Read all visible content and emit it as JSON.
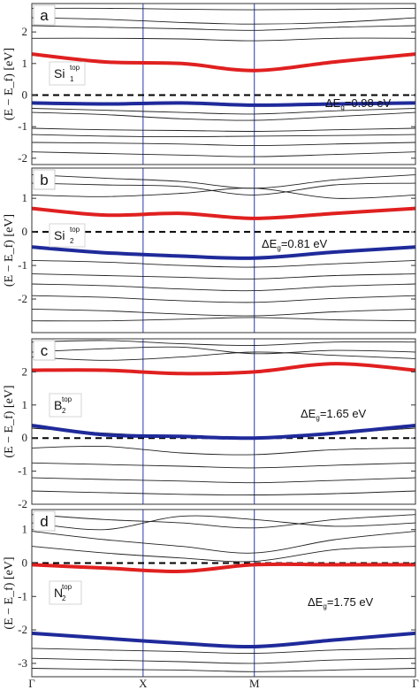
{
  "chart_data": [
    {
      "type": "line",
      "panel": "a",
      "ylabel": "(E − E_f) [eV]",
      "ylim": [
        -2.2,
        2.9
      ],
      "y_ticks": [
        "-2",
        "-1",
        "0",
        "1",
        "2"
      ],
      "x_ticks": [
        "Γ",
        "X",
        "M",
        "Γ"
      ],
      "site_label": "Si",
      "site_sub": "1",
      "site_sup": "top",
      "gap_label": "ΔE",
      "gap_sub": "g",
      "gap_value": "=0.98 eV",
      "colors": {
        "conduction": "#e02020",
        "valence": "#1f2a9a",
        "bands": "#222222",
        "fermi": "#000000",
        "kline": "#2a3aa8"
      },
      "bands": [
        [
          2.75,
          2.75,
          2.72,
          2.7,
          2.72,
          2.75
        ],
        [
          2.45,
          2.4,
          2.3,
          2.25,
          2.3,
          2.45
        ],
        [
          2.2,
          2.15,
          2.1,
          2.05,
          2.15,
          2.2
        ],
        [
          1.8,
          1.8,
          1.78,
          1.72,
          1.8,
          1.8
        ],
        [
          -0.42,
          -0.48,
          -0.55,
          -0.6,
          -0.5,
          -0.42
        ],
        [
          -0.55,
          -0.62,
          -0.75,
          -0.8,
          -0.68,
          -0.55
        ],
        [
          -1.05,
          -1.1,
          -1.12,
          -1.15,
          -1.1,
          -1.05
        ],
        [
          -1.25,
          -1.3,
          -1.32,
          -1.3,
          -1.28,
          -1.25
        ],
        [
          -1.5,
          -1.52,
          -1.55,
          -1.6,
          -1.55,
          -1.5
        ],
        [
          -1.8,
          -1.85,
          -1.9,
          -1.95,
          -1.88,
          -1.8
        ]
      ],
      "conduction": [
        1.3,
        1.05,
        1.0,
        0.78,
        1.05,
        1.3
      ],
      "valence": [
        -0.25,
        -0.28,
        -0.25,
        -0.32,
        -0.28,
        -0.25
      ]
    },
    {
      "type": "line",
      "panel": "b",
      "ylabel": "(E − E_f) [eV]",
      "ylim": [
        -3.0,
        1.9
      ],
      "y_ticks": [
        "-2",
        "-1",
        "0",
        "1"
      ],
      "x_ticks": [
        "Γ",
        "X",
        "M",
        "Γ"
      ],
      "site_label": "Si",
      "site_sub": "2",
      "site_sup": "top",
      "gap_label": "ΔE",
      "gap_sub": "g",
      "gap_value": "=0.81 eV",
      "colors": {
        "conduction": "#e02020",
        "valence": "#1f2a9a",
        "bands": "#222222",
        "fermi": "#000000",
        "kline": "#2a3aa8"
      },
      "bands": [
        [
          1.7,
          1.6,
          1.5,
          1.3,
          1.55,
          1.7
        ],
        [
          1.45,
          1.4,
          1.35,
          1.1,
          1.4,
          1.45
        ],
        [
          1.1,
          1.05,
          1.15,
          1.3,
          1.0,
          1.1
        ],
        [
          -0.85,
          -0.9,
          -1.0,
          -1.05,
          -0.95,
          -0.85
        ],
        [
          -1.25,
          -1.3,
          -1.35,
          -1.4,
          -1.3,
          -1.25
        ],
        [
          -1.55,
          -1.6,
          -1.7,
          -1.75,
          -1.62,
          -1.55
        ],
        [
          -1.9,
          -1.95,
          -2.05,
          -2.1,
          -1.98,
          -1.9
        ],
        [
          -2.3,
          -2.35,
          -2.45,
          -2.5,
          -2.38,
          -2.3
        ],
        [
          -2.65,
          -2.65,
          -2.6,
          -2.55,
          -2.62,
          -2.65
        ]
      ],
      "conduction": [
        0.7,
        0.5,
        0.55,
        0.4,
        0.55,
        0.7
      ],
      "valence": [
        -0.45,
        -0.62,
        -0.72,
        -0.78,
        -0.6,
        -0.45
      ]
    },
    {
      "type": "line",
      "panel": "c",
      "ylabel": "(E − E_f) [eV]",
      "ylim": [
        -2.0,
        3.0
      ],
      "y_ticks": [
        "-2",
        "-1",
        "0",
        "1",
        "2"
      ],
      "x_ticks": [
        "Γ",
        "X",
        "M",
        "Γ"
      ],
      "site_label": "B",
      "site_sub": "2",
      "site_sup": "top",
      "gap_label": "ΔE",
      "gap_sub": "g",
      "gap_value": "=1.65 eV",
      "colors": {
        "conduction": "#e02020",
        "valence": "#1f2a9a",
        "bands": "#222222",
        "fermi": "#000000",
        "kline": "#2a3aa8"
      },
      "bands": [
        [
          2.9,
          2.95,
          2.85,
          2.8,
          2.9,
          2.9
        ],
        [
          2.6,
          2.7,
          2.75,
          2.55,
          2.65,
          2.6
        ],
        [
          2.45,
          2.35,
          2.45,
          2.6,
          2.5,
          2.4
        ],
        [
          0.3,
          0.15,
          0.05,
          0.02,
          0.15,
          0.3
        ],
        [
          -0.3,
          -0.25,
          -0.45,
          -0.5,
          -0.35,
          -0.3
        ],
        [
          -0.75,
          -0.8,
          -0.85,
          -0.9,
          -0.82,
          -0.75
        ],
        [
          -1.2,
          -1.25,
          -1.3,
          -1.35,
          -1.28,
          -1.2
        ],
        [
          -1.6,
          -1.65,
          -1.7,
          -1.72,
          -1.68,
          -1.6
        ]
      ],
      "conduction": [
        2.05,
        2.05,
        1.95,
        2.0,
        2.25,
        2.05
      ],
      "valence": [
        0.38,
        0.1,
        0.05,
        0.0,
        0.15,
        0.38
      ]
    },
    {
      "type": "line",
      "panel": "d",
      "ylabel": "(E − E_f) [eV]",
      "ylim": [
        -3.4,
        1.6
      ],
      "y_ticks": [
        "-3",
        "-2",
        "-1",
        "0",
        "1"
      ],
      "x_ticks": [
        "Γ",
        "X",
        "M",
        "Γ"
      ],
      "site_label": "N",
      "site_sub": "2",
      "site_sup": "top",
      "gap_label": "ΔE",
      "gap_sub": "g",
      "gap_value": "=1.75 eV",
      "colors": {
        "conduction": "#e02020",
        "valence": "#1f2a9a",
        "bands": "#222222",
        "fermi": "#000000",
        "kline": "#2a3aa8"
      },
      "bands": [
        [
          1.45,
          1.3,
          1.2,
          1.05,
          1.3,
          1.45
        ],
        [
          1.2,
          1.0,
          1.4,
          1.3,
          1.1,
          1.2
        ],
        [
          0.95,
          0.7,
          0.5,
          0.3,
          0.7,
          0.95
        ],
        [
          0.5,
          0.3,
          0.15,
          0.05,
          0.4,
          0.5
        ],
        [
          -2.55,
          -2.6,
          -2.65,
          -2.7,
          -2.6,
          -2.55
        ],
        [
          -2.85,
          -2.9,
          -2.95,
          -3.0,
          -2.9,
          -2.85
        ],
        [
          -3.15,
          -3.18,
          -3.2,
          -3.25,
          -3.2,
          -3.15
        ]
      ],
      "conduction": [
        -0.05,
        -0.15,
        -0.25,
        -0.05,
        -0.05,
        -0.05
      ],
      "valence": [
        -2.1,
        -2.25,
        -2.4,
        -2.5,
        -2.3,
        -2.1
      ]
    }
  ],
  "x_axis": {
    "labels": [
      "Γ",
      "X",
      "M",
      "Γ"
    ]
  }
}
